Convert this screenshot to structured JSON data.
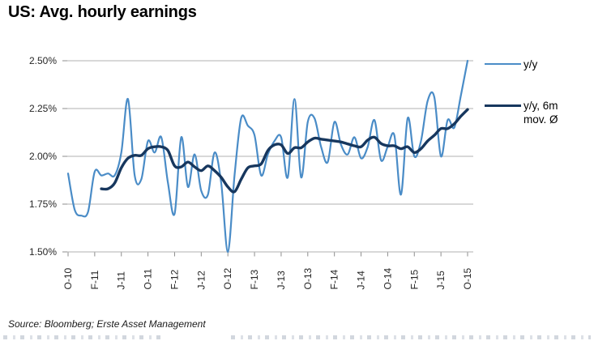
{
  "header": {
    "title": "US: Avg. hourly earnings"
  },
  "legend": {
    "items": [
      {
        "label": "y/y"
      },
      {
        "label": "y/y, 6m\nmov. Ø"
      }
    ]
  },
  "source": {
    "text": "Source: Bloomberg; Erste Asset Management"
  },
  "chart_data": {
    "type": "line",
    "title": "US: Avg. hourly earnings",
    "x_tick_labels": [
      "O-10",
      "F-11",
      "J-11",
      "O-11",
      "F-12",
      "J-12",
      "O-12",
      "F-13",
      "J-13",
      "O-13",
      "F-14",
      "J-14",
      "O-14",
      "F-15",
      "J-15",
      "O-15"
    ],
    "y_tick_labels": [
      "2.50%",
      "2.25%",
      "2.00%",
      "1.75%",
      "1.50%"
    ],
    "ylim": [
      1.5,
      2.5
    ],
    "grid": "horizontal",
    "legend_position": "right",
    "colors": {
      "grid": "#b2b2b2",
      "tick": "#8c8c8c",
      "axis_text": "#262626"
    },
    "series": [
      {
        "name": "y/y",
        "color": "#4a8cc7",
        "width": 2.2,
        "start_index": 0,
        "values": [
          1.91,
          1.72,
          1.69,
          1.71,
          1.92,
          1.9,
          1.91,
          1.9,
          2.02,
          2.3,
          1.9,
          1.88,
          2.08,
          2.02,
          2.1,
          1.86,
          1.7,
          2.1,
          1.84,
          2.01,
          1.82,
          1.8,
          2.02,
          1.86,
          1.5,
          1.9,
          2.2,
          2.16,
          2.11,
          1.9,
          2.01,
          2.08,
          2.1,
          1.89,
          2.3,
          1.89,
          2.18,
          2.2,
          2.05,
          1.97,
          2.18,
          2.06,
          2.01,
          2.1,
          1.99,
          2.05,
          2.19,
          1.98,
          2.05,
          2.11,
          1.8,
          2.2,
          2.0,
          2.08,
          2.29,
          2.31,
          2.0,
          2.19,
          2.15,
          2.32,
          2.5
        ]
      },
      {
        "name": "y/y, 6m mov. Ø",
        "color": "#17375e",
        "width": 3.4,
        "start_index": 5,
        "values": [
          1.83,
          1.83,
          1.86,
          1.94,
          1.99,
          2.005,
          2.005,
          2.04,
          2.05,
          2.05,
          2.03,
          1.95,
          1.945,
          1.97,
          1.945,
          1.925,
          1.95,
          1.925,
          1.89,
          1.84,
          1.815,
          1.88,
          1.94,
          1.95,
          1.96,
          2.03,
          2.06,
          2.06,
          2.015,
          2.045,
          2.045,
          2.075,
          2.095,
          2.09,
          2.085,
          2.08,
          2.075,
          2.065,
          2.055,
          2.05,
          2.085,
          2.1,
          2.067,
          2.055,
          2.055,
          2.04,
          2.05,
          2.02,
          2.04,
          2.08,
          2.11,
          2.145,
          2.145,
          2.17,
          2.21,
          2.245
        ]
      }
    ]
  }
}
